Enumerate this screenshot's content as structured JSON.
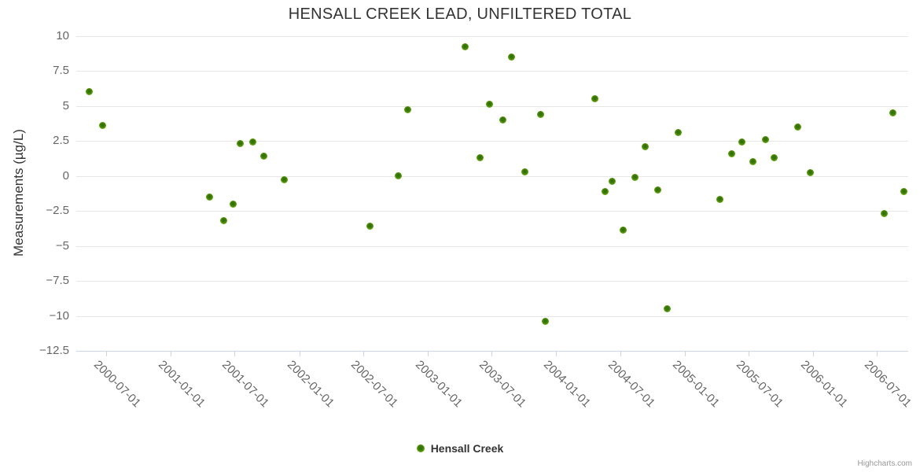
{
  "chart": {
    "credit": "Highcharts.com"
  },
  "chart_data": {
    "type": "scatter",
    "title": "HENSALL CREEK LEAD, UNFILTERED TOTAL",
    "xlabel": "",
    "ylabel": "Measurements (µg/L)",
    "ylim": [
      -12.5,
      10
    ],
    "grid": true,
    "legend_position": "bottom-center",
    "y_ticks": [
      10,
      7.5,
      5,
      2.5,
      0,
      -2.5,
      -5,
      -7.5,
      -10,
      -12.5
    ],
    "x_ticks": [
      "2000-07-01",
      "2001-01-01",
      "2001-07-01",
      "2002-01-01",
      "2002-07-01",
      "2003-01-01",
      "2003-07-01",
      "2004-01-01",
      "2004-07-01",
      "2005-01-01",
      "2005-07-01",
      "2006-01-01",
      "2006-07-01"
    ],
    "x_range": [
      "2000-04-07",
      "2006-09-28"
    ],
    "series": [
      {
        "name": "Hensall Creek",
        "color": "#5a9e0b",
        "points": [
          [
            "2000-05-15",
            6.0
          ],
          [
            "2000-06-20",
            3.6
          ],
          [
            "2001-04-21",
            -1.5
          ],
          [
            "2001-06-01",
            -3.2
          ],
          [
            "2001-06-27",
            -2.0
          ],
          [
            "2001-07-16",
            2.3
          ],
          [
            "2001-08-22",
            2.4
          ],
          [
            "2001-09-23",
            1.4
          ],
          [
            "2001-11-20",
            -0.3
          ],
          [
            "2002-07-22",
            -3.6
          ],
          [
            "2002-10-09",
            0.0
          ],
          [
            "2002-11-05",
            4.7
          ],
          [
            "2003-04-17",
            9.2
          ],
          [
            "2003-05-30",
            1.3
          ],
          [
            "2003-06-26",
            5.1
          ],
          [
            "2003-08-02",
            4.0
          ],
          [
            "2003-08-28",
            8.5
          ],
          [
            "2003-10-05",
            0.3
          ],
          [
            "2003-11-17",
            4.4
          ],
          [
            "2003-12-01",
            -10.4
          ],
          [
            "2004-04-21",
            5.5
          ],
          [
            "2004-05-19",
            -1.1
          ],
          [
            "2004-06-09",
            -0.4
          ],
          [
            "2004-07-09",
            -3.9
          ],
          [
            "2004-08-12",
            -0.1
          ],
          [
            "2004-09-11",
            2.1
          ],
          [
            "2004-10-16",
            -1.0
          ],
          [
            "2004-11-12",
            -9.5
          ],
          [
            "2004-12-13",
            3.1
          ],
          [
            "2005-04-10",
            -1.7
          ],
          [
            "2005-05-15",
            1.6
          ],
          [
            "2005-06-13",
            2.4
          ],
          [
            "2005-07-14",
            1.0
          ],
          [
            "2005-08-18",
            2.6
          ],
          [
            "2005-09-12",
            1.3
          ],
          [
            "2005-11-17",
            3.5
          ],
          [
            "2005-12-23",
            0.2
          ],
          [
            "2006-07-21",
            -2.7
          ],
          [
            "2006-08-16",
            4.5
          ],
          [
            "2006-09-15",
            -1.1
          ]
        ]
      }
    ]
  }
}
